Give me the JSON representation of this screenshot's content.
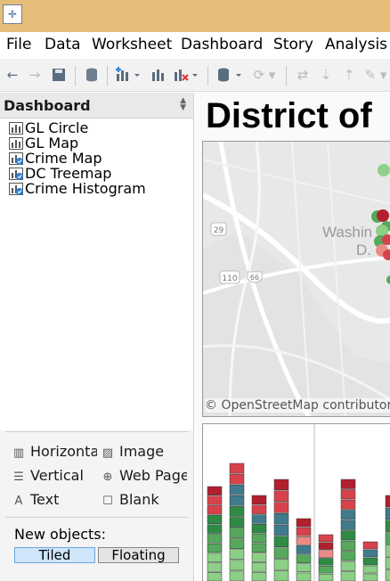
{
  "menu": [
    "File",
    "Data",
    "Worksheet",
    "Dashboard",
    "Story",
    "Analysis"
  ],
  "sidebar": {
    "title": "Dashboard",
    "sheets": [
      {
        "label": "GL Circle",
        "icon": "worksheet-icon"
      },
      {
        "label": "GL Map",
        "icon": "worksheet-icon"
      },
      {
        "label": "Crime Map",
        "icon": "worksheet-in-use-icon"
      },
      {
        "label": "DC Treemap",
        "icon": "worksheet-in-use-icon"
      },
      {
        "label": "Crime Histogram",
        "icon": "worksheet-in-use-icon"
      }
    ],
    "objects": [
      {
        "label": "Horizontal",
        "icon": "horizontal-container-icon"
      },
      {
        "label": "Image",
        "icon": "image-icon"
      },
      {
        "label": "Vertical",
        "icon": "vertical-container-icon"
      },
      {
        "label": "Web Page",
        "icon": "globe-icon"
      },
      {
        "label": "Text",
        "icon": "text-icon"
      },
      {
        "label": "Blank",
        "icon": "blank-icon"
      }
    ],
    "new_objects_label": "New objects:",
    "tiled_label": "Tiled",
    "floating_label": "Floating",
    "tiled_selected": true
  },
  "dashboard": {
    "title": "District of",
    "map_city_1": "Washin",
    "map_city_2": "D.",
    "road_shield_1": "29",
    "road_shield_2": "110",
    "road_shield_3": "66",
    "map_credit": "© OpenStreetMap contributors",
    "colors": {
      "dark_red": "#b21f2d",
      "red": "#d6424b",
      "light_red": "#ec8a86",
      "teal": "#3f7b8c",
      "dark_green": "#2e8a45",
      "green": "#56a85c",
      "light_green": "#8ccf86"
    }
  }
}
